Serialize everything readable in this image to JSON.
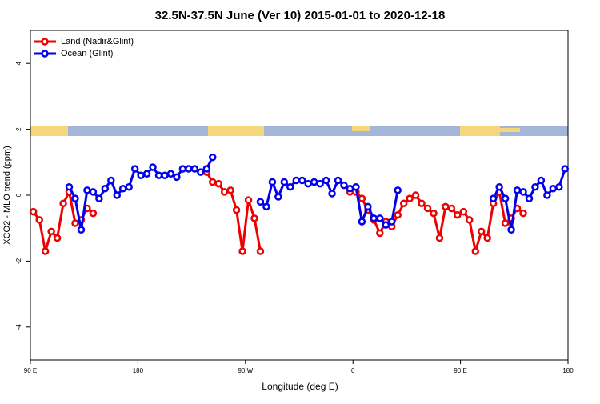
{
  "chart_data": {
    "type": "line",
    "title": "32.5N-37.5N June (Ver 10)   2015-01-01 to 2020-12-18",
    "x_label": "Longitude (deg E)",
    "y_label": "XCO2 - MLO trend (ppm)",
    "xlim": [
      90,
      540
    ],
    "ylim": [
      -5,
      5
    ],
    "xticks": [
      {
        "value": 90,
        "label": "90 E"
      },
      {
        "value": 180,
        "label": "180"
      },
      {
        "value": 270,
        "label": "90 W"
      },
      {
        "value": 360,
        "label": "0"
      },
      {
        "value": 450,
        "label": "90 E"
      },
      {
        "value": 540,
        "label": "180"
      }
    ],
    "yticks": [
      -4,
      -2,
      0,
      2,
      4
    ],
    "legend": "top-left",
    "series": [
      {
        "name": "Land (Nadir&Glint)",
        "color": "#ee0000",
        "x": [
          92.5,
          97.5,
          102.5,
          107.5,
          112.5,
          117.5,
          122.5,
          127.5,
          132.5,
          137.5,
          142.5,
          147.5,
          237.5,
          242.5,
          247.5,
          252.5,
          257.5,
          262.5,
          267.5,
          272.5,
          277.5,
          282.5,
          287.5,
          357.5,
          362.5,
          367.5,
          372.5,
          377.5,
          382.5,
          387.5,
          392.5,
          397.5,
          402.5,
          407.5,
          412.5,
          417.5,
          422.5,
          427.5,
          432.5,
          437.5,
          442.5,
          447.5,
          452.5,
          457.5,
          462.5,
          467.5,
          472.5,
          477.5,
          482.5,
          487.5,
          492.5,
          497.5,
          502.5
        ],
        "values": [
          -0.5,
          -0.75,
          -1.7,
          -1.1,
          -1.3,
          -0.25,
          0.1,
          -0.85,
          -0.75,
          -0.4,
          -0.55,
          null,
          0.7,
          0.4,
          0.35,
          0.1,
          0.15,
          -0.45,
          -1.7,
          -0.15,
          -0.7,
          -1.7,
          null,
          0.1,
          0.1,
          -0.1,
          -0.45,
          -0.75,
          -1.15,
          -0.8,
          -0.95,
          -0.6,
          -0.25,
          -0.1,
          0,
          -0.25,
          -0.4,
          -0.55,
          -1.3,
          -0.35,
          -0.4,
          -0.6,
          -0.5,
          -0.75,
          -1.7,
          -1.1,
          -1.3,
          -0.25,
          0.1,
          -0.85,
          -0.7,
          -0.4,
          -0.55
        ]
      },
      {
        "name": "Ocean (Glint)",
        "color": "#0000ee",
        "x": [
          122.5,
          127.5,
          132.5,
          137.5,
          142.5,
          147.5,
          152.5,
          157.5,
          162.5,
          167.5,
          172.5,
          177.5,
          182.5,
          187.5,
          192.5,
          197.5,
          202.5,
          207.5,
          212.5,
          217.5,
          222.5,
          227.5,
          232.5,
          237.5,
          242.5,
          247.5,
          282.5,
          287.5,
          292.5,
          297.5,
          302.5,
          307.5,
          312.5,
          317.5,
          322.5,
          327.5,
          332.5,
          337.5,
          342.5,
          347.5,
          352.5,
          357.5,
          362.5,
          367.5,
          372.5,
          377.5,
          382.5,
          387.5,
          392.5,
          397.5,
          402.5,
          477.5,
          482.5,
          487.5,
          492.5,
          497.5,
          502.5,
          507.5,
          512.5,
          517.5,
          522.5,
          527.5,
          532.5,
          537.5
        ],
        "values": [
          0.25,
          -0.1,
          -1.05,
          0.15,
          0.1,
          -0.1,
          0.2,
          0.45,
          0,
          0.2,
          0.25,
          0.8,
          0.6,
          0.65,
          0.85,
          0.6,
          0.6,
          0.65,
          0.55,
          0.8,
          0.8,
          0.8,
          0.7,
          0.8,
          1.15,
          null,
          -0.2,
          -0.35,
          0.4,
          -0.05,
          0.4,
          0.25,
          0.45,
          0.45,
          0.35,
          0.4,
          0.35,
          0.45,
          0.05,
          0.45,
          0.3,
          0.2,
          0.25,
          -0.8,
          -0.35,
          -0.7,
          -0.7,
          -0.9,
          -0.8,
          0.15,
          null,
          -0.1,
          0.25,
          -0.1,
          -1.05,
          0.15,
          0.1,
          -0.1,
          0.25,
          0.45,
          0,
          0.2,
          0.25,
          0.8
        ]
      }
    ]
  }
}
